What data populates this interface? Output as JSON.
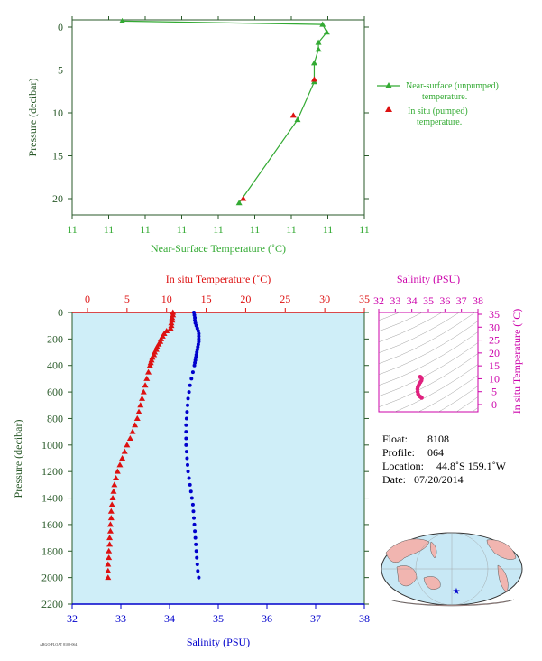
{
  "colors": {
    "green": "#33aa33",
    "dark_green": "#2a5a2a",
    "red": "#dd1111",
    "blue": "#0000cc",
    "magenta": "#cc00aa",
    "pink": "#e0217f",
    "panel_bg": "#cfeef8",
    "land": "#f1b5b0",
    "ocean": "#c8e8f5"
  },
  "chart_data": [
    {
      "type": "line",
      "id": "near-surface",
      "xlabel": "Near-Surface Temperature (˚C)",
      "ylabel": "Pressure (decibar)",
      "xticks": [
        "11",
        "11",
        "11",
        "11",
        "11",
        "11",
        "11",
        "11",
        "11"
      ],
      "yticks": [
        0,
        5,
        10,
        15,
        20
      ],
      "ylim": [
        0,
        22
      ],
      "series": [
        {
          "name": "Near-surface (unpumped) temperature.",
          "marker": "triangle",
          "x": [
            10.82,
            11.3,
            11.31,
            11.29,
            11.29,
            11.28,
            11.28,
            11.24,
            11.1
          ],
          "y": [
            -0.7,
            -0.3,
            0.6,
            1.8,
            2.6,
            4.2,
            6.4,
            10.8,
            20.5
          ]
        },
        {
          "name": "In situ (pumped) temperature.",
          "marker": "triangle",
          "x": [
            11.28,
            11.23,
            11.11
          ],
          "y": [
            6.1,
            10.3,
            20.0
          ]
        }
      ]
    },
    {
      "type": "scatter",
      "id": "profile",
      "ylabel": "Pressure (decibar)",
      "yticks": [
        0,
        200,
        400,
        600,
        800,
        1000,
        1200,
        1400,
        1600,
        1800,
        2000,
        2200
      ],
      "ylim": [
        0,
        2200
      ],
      "temperature_axis": {
        "label": "In situ Temperature (˚C)",
        "ticks": [
          0,
          5,
          10,
          15,
          20,
          25,
          30,
          35
        ],
        "lim": [
          -1,
          35
        ]
      },
      "salinity_axis": {
        "label": "Salinity (PSU)",
        "ticks": [
          32,
          33,
          34,
          35,
          36,
          37,
          38
        ],
        "lim": [
          32,
          38
        ]
      },
      "temperature_profile": {
        "pressure": [
          0,
          20,
          40,
          60,
          80,
          100,
          120,
          140,
          160,
          180,
          200,
          220,
          240,
          260,
          280,
          300,
          320,
          340,
          360,
          380,
          400,
          450,
          500,
          550,
          600,
          650,
          700,
          750,
          800,
          850,
          900,
          950,
          1000,
          1050,
          1100,
          1150,
          1200,
          1250,
          1300,
          1350,
          1400,
          1450,
          1500,
          1550,
          1600,
          1650,
          1700,
          1750,
          1800,
          1850,
          1900,
          1950,
          2000
        ],
        "values": [
          10.8,
          10.8,
          10.7,
          10.7,
          10.6,
          10.6,
          10.5,
          10.0,
          9.7,
          9.5,
          9.3,
          9.2,
          9.0,
          8.8,
          8.7,
          8.5,
          8.4,
          8.2,
          8.1,
          8.0,
          7.9,
          7.7,
          7.5,
          7.3,
          7.1,
          6.9,
          6.7,
          6.5,
          6.3,
          6.0,
          5.7,
          5.4,
          5.0,
          4.7,
          4.4,
          4.1,
          3.8,
          3.6,
          3.4,
          3.3,
          3.2,
          3.1,
          3.0,
          3.0,
          2.9,
          2.9,
          2.8,
          2.8,
          2.7,
          2.7,
          2.6,
          2.6,
          2.6
        ]
      },
      "salinity_profile": {
        "pressure": [
          0,
          20,
          40,
          60,
          80,
          100,
          120,
          140,
          160,
          180,
          200,
          220,
          240,
          260,
          280,
          300,
          320,
          340,
          360,
          380,
          400,
          450,
          500,
          550,
          600,
          650,
          700,
          750,
          800,
          850,
          900,
          950,
          1000,
          1050,
          1100,
          1150,
          1200,
          1250,
          1300,
          1350,
          1400,
          1450,
          1500,
          1550,
          1600,
          1650,
          1700,
          1750,
          1800,
          1850,
          1900,
          1950,
          2000
        ],
        "values": [
          34.5,
          34.51,
          34.52,
          34.52,
          34.53,
          34.55,
          34.57,
          34.59,
          34.6,
          34.6,
          34.6,
          34.6,
          34.59,
          34.58,
          34.57,
          34.56,
          34.55,
          34.54,
          34.53,
          34.52,
          34.51,
          34.48,
          34.45,
          34.42,
          34.4,
          34.38,
          34.37,
          34.36,
          34.35,
          34.34,
          34.34,
          34.34,
          34.34,
          34.35,
          34.36,
          34.37,
          34.38,
          34.4,
          34.42,
          34.44,
          34.46,
          34.48,
          34.49,
          34.5,
          34.51,
          34.52,
          34.53,
          34.54,
          34.55,
          34.56,
          34.57,
          34.58,
          34.6
        ]
      }
    },
    {
      "type": "scatter",
      "id": "ts-diagram",
      "xlabel": "Salinity (PSU)",
      "ylabel": "In situ Temperature (˚C)",
      "xticks": [
        32,
        33,
        34,
        35,
        36,
        37,
        38
      ],
      "yticks": [
        0,
        5,
        10,
        15,
        20,
        25,
        30,
        35
      ],
      "xlim": [
        32,
        38
      ],
      "ylim": [
        -1,
        35
      ],
      "points": {
        "x": [
          34.5,
          34.55,
          34.6,
          34.58,
          34.52,
          34.45,
          34.4,
          34.36,
          34.34,
          34.35,
          34.38,
          34.44,
          34.5,
          34.55,
          34.58,
          34.6
        ],
        "y": [
          10.8,
          10.6,
          10.0,
          9.3,
          8.7,
          8.0,
          7.3,
          6.7,
          6.0,
          5.0,
          4.1,
          3.4,
          3.1,
          2.9,
          2.7,
          2.6
        ]
      }
    }
  ],
  "info": {
    "float_label": "Float:",
    "float_value": "8108",
    "profile_label": "Profile:",
    "profile_value": "064",
    "location_label": "Location:",
    "location_value": "44.8˚S  159.1˚W",
    "date_label": "Date:",
    "date_value": "07/20/2014"
  },
  "footer": {
    "code": "ARGO-FLOAT 8108-064"
  },
  "map": {
    "marker": "★"
  }
}
